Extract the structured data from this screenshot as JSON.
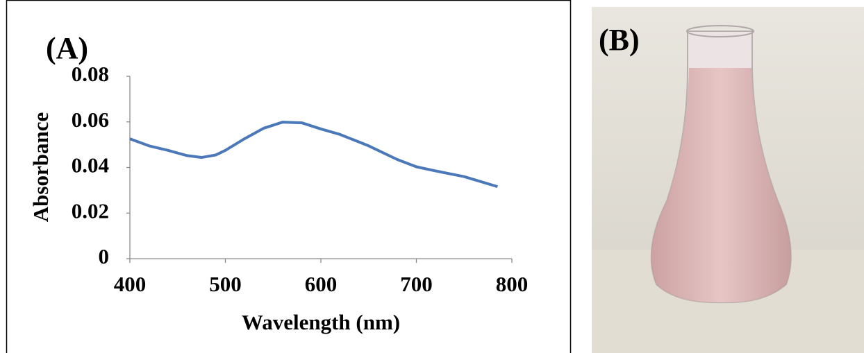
{
  "chart_data": {
    "type": "line",
    "panel_label": "(A)",
    "x_label": "Wavelength (nm)",
    "y_label": "Absorbance",
    "x": [
      400,
      420,
      440,
      460,
      475,
      490,
      500,
      520,
      540,
      560,
      580,
      600,
      620,
      650,
      680,
      700,
      720,
      750,
      785
    ],
    "series": [
      {
        "color": "#4a78b8",
        "values": [
          0.0526,
          0.0495,
          0.0475,
          0.0452,
          0.0444,
          0.0455,
          0.0475,
          0.0526,
          0.0572,
          0.0599,
          0.0596,
          0.0569,
          0.0545,
          0.0495,
          0.0435,
          0.0403,
          0.0385,
          0.036,
          0.0316
        ]
      }
    ],
    "xlim": [
      400,
      800
    ],
    "xticks": [
      400,
      500,
      600,
      700,
      800
    ],
    "ylim": [
      0,
      0.08
    ],
    "yticks": [
      0,
      0.02,
      0.04,
      0.06,
      0.08
    ],
    "grid": false
  },
  "photo_panel": {
    "label": "(B)"
  }
}
